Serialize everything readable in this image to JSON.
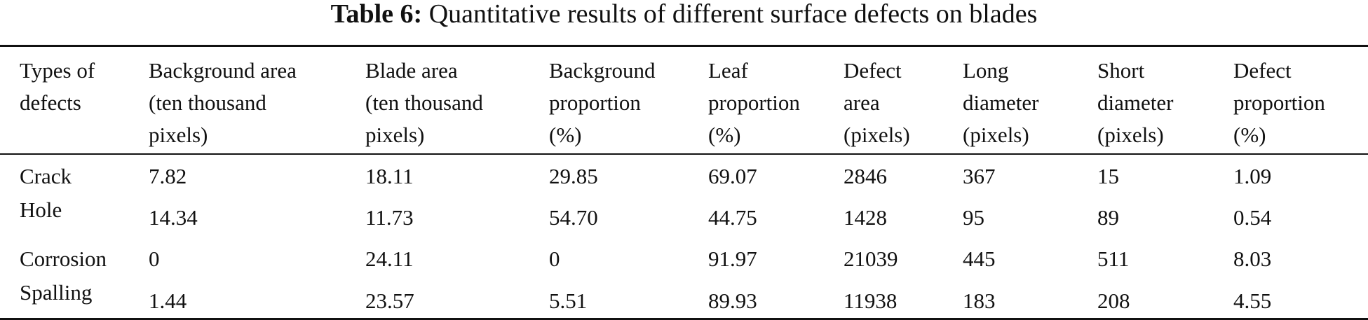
{
  "caption": {
    "label": "Table 6:",
    "text": "Quantitative results of different surface defects on blades"
  },
  "table": {
    "headers": [
      [
        "Types of",
        "defects"
      ],
      [
        "Background area",
        "(ten thousand",
        "pixels)"
      ],
      [
        "Blade area",
        "(ten thousand",
        "pixels)"
      ],
      [
        "Background",
        "proportion",
        "(%)"
      ],
      [
        "Leaf",
        "proportion",
        "(%)"
      ],
      [
        "Defect",
        "area",
        "(pixels)"
      ],
      [
        "Long",
        "diameter",
        "(pixels)"
      ],
      [
        "Short",
        "diameter",
        "(pixels)"
      ],
      [
        "Defect",
        "proportion",
        "(%)"
      ]
    ],
    "row_labels": [
      "Crack",
      "Hole",
      "Corrosion",
      "Spalling"
    ],
    "rows": [
      [
        "7.82",
        "18.11",
        "29.85",
        "69.07",
        "2846",
        "367",
        "15",
        "1.09"
      ],
      [
        "14.34",
        "11.73",
        "54.70",
        "44.75",
        "1428",
        "95",
        "89",
        "0.54"
      ],
      [
        "0",
        "24.11",
        "0",
        "91.97",
        "21039",
        "445",
        "511",
        "8.03"
      ],
      [
        "1.44",
        "23.57",
        "5.51",
        "89.93",
        "11938",
        "183",
        "208",
        "4.55"
      ]
    ]
  }
}
